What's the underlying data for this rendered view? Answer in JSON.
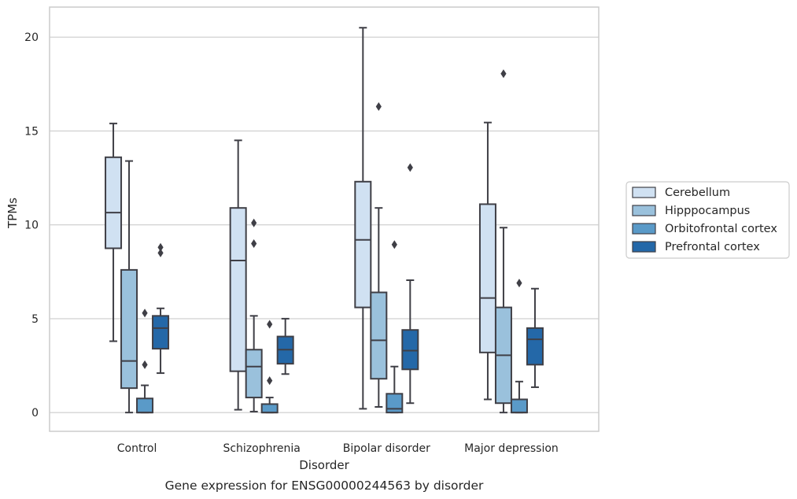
{
  "chart_data": {
    "type": "box",
    "title": "",
    "caption": "Gene expression for ENSG00000244563 by disorder",
    "xlabel": "Disorder",
    "ylabel": "TPMs",
    "ylim": [
      -1,
      21.6
    ],
    "yticks": [
      0,
      5,
      10,
      15,
      20
    ],
    "grid": "horizontal",
    "legend_position": "right",
    "categories": [
      "Control",
      "Schizophrenia",
      "Bipolar disorder",
      "Major depression"
    ],
    "series": [
      {
        "name": "Cerebellum",
        "color": "#d0e1f2",
        "boxes": [
          {
            "whisker_low": 3.8,
            "q1": 8.75,
            "median": 10.65,
            "q3": 13.6,
            "whisker_high": 15.4,
            "outliers": []
          },
          {
            "whisker_low": 0.15,
            "q1": 2.2,
            "median": 8.1,
            "q3": 10.9,
            "whisker_high": 14.5,
            "outliers": []
          },
          {
            "whisker_low": 0.2,
            "q1": 5.6,
            "median": 9.2,
            "q3": 12.3,
            "whisker_high": 20.5,
            "outliers": []
          },
          {
            "whisker_low": 0.7,
            "q1": 3.2,
            "median": 6.1,
            "q3": 11.1,
            "whisker_high": 15.45,
            "outliers": []
          }
        ]
      },
      {
        "name": "Hipppocampus",
        "color": "#9ac1dc",
        "boxes": [
          {
            "whisker_low": 0.0,
            "q1": 1.3,
            "median": 2.75,
            "q3": 7.6,
            "whisker_high": 13.4,
            "outliers": []
          },
          {
            "whisker_low": 0.05,
            "q1": 0.8,
            "median": 2.45,
            "q3": 3.35,
            "whisker_high": 5.15,
            "outliers": [
              10.1,
              9.0
            ]
          },
          {
            "whisker_low": 0.3,
            "q1": 1.8,
            "median": 3.85,
            "q3": 6.4,
            "whisker_high": 10.9,
            "outliers": [
              16.3
            ]
          },
          {
            "whisker_low": 0.0,
            "q1": 0.5,
            "median": 3.05,
            "q3": 5.6,
            "whisker_high": 9.85,
            "outliers": [
              18.05
            ]
          }
        ]
      },
      {
        "name": "Orbitofrontal cortex",
        "color": "#5a9ac8",
        "boxes": [
          {
            "whisker_low": 0.0,
            "q1": 0.0,
            "median": 0.0,
            "q3": 0.75,
            "whisker_high": 1.45,
            "outliers": [
              5.3,
              2.55
            ]
          },
          {
            "whisker_low": 0.0,
            "q1": 0.0,
            "median": 0.0,
            "q3": 0.45,
            "whisker_high": 0.8,
            "outliers": [
              4.7,
              1.7
            ]
          },
          {
            "whisker_low": 0.0,
            "q1": 0.0,
            "median": 0.2,
            "q3": 1.0,
            "whisker_high": 2.45,
            "outliers": [
              8.95
            ]
          },
          {
            "whisker_low": 0.0,
            "q1": 0.0,
            "median": 0.0,
            "q3": 0.7,
            "whisker_high": 1.65,
            "outliers": [
              6.9
            ]
          }
        ]
      },
      {
        "name": "Prefrontal cortex",
        "color": "#2468a8",
        "boxes": [
          {
            "whisker_low": 2.1,
            "q1": 3.4,
            "median": 4.5,
            "q3": 5.15,
            "whisker_high": 5.55,
            "outliers": [
              8.8,
              8.5
            ]
          },
          {
            "whisker_low": 2.05,
            "q1": 2.6,
            "median": 3.35,
            "q3": 4.05,
            "whisker_high": 5.0,
            "outliers": []
          },
          {
            "whisker_low": 0.5,
            "q1": 2.3,
            "median": 3.3,
            "q3": 4.4,
            "whisker_high": 7.05,
            "outliers": [
              13.05
            ]
          },
          {
            "whisker_low": 1.35,
            "q1": 2.55,
            "median": 3.9,
            "q3": 4.5,
            "whisker_high": 6.6,
            "outliers": []
          }
        ]
      }
    ]
  }
}
